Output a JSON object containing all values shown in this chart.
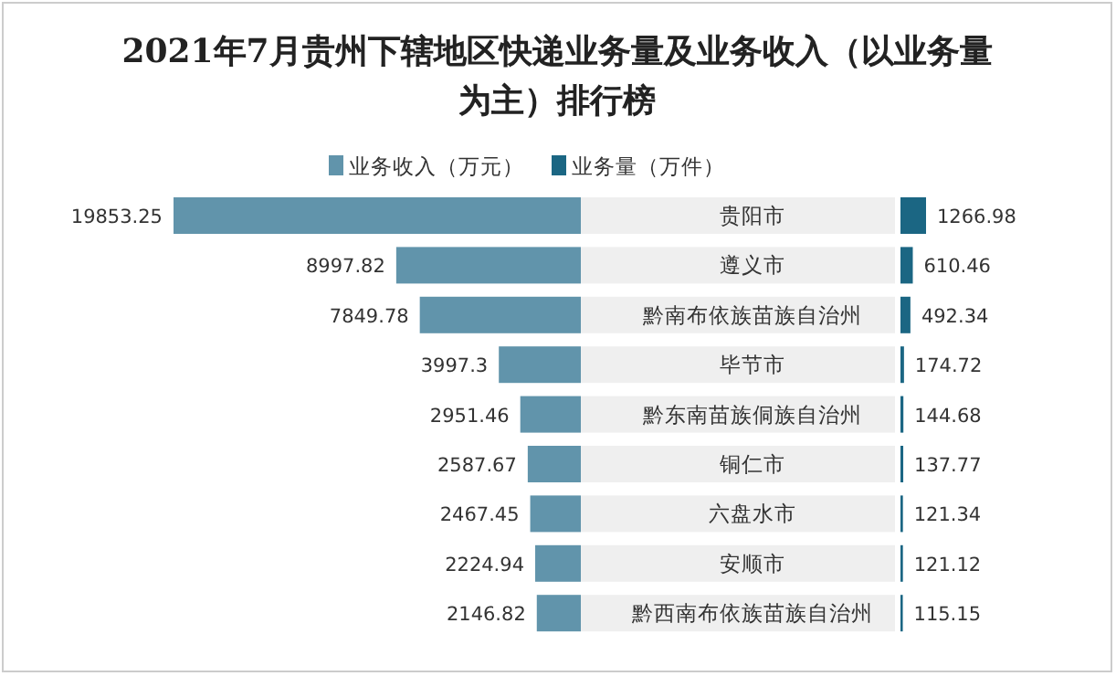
{
  "chart_data": [
    {
      "type": "bar",
      "orientation": "horizontal",
      "title": "2021年7月贵州下辖地区快递业务量及业务收入（以业务量为主）排行榜",
      "categories": [
        "贵阳市",
        "遵义市",
        "黔南布依族苗族自治州",
        "毕节市",
        "黔东南苗族侗族自治州",
        "铜仁市",
        "六盘水市",
        "安顺市",
        "黔西南布依族苗族自治州"
      ],
      "series": [
        {
          "name": "业务收入（万元）",
          "color": "#6194ab",
          "values": [
            19853.25,
            8997.82,
            7849.78,
            3997.3,
            2951.46,
            2587.67,
            2467.45,
            2224.94,
            2146.82
          ]
        }
      ],
      "tick_labels": false,
      "data_labels": true,
      "legend": "top"
    },
    {
      "type": "bar",
      "orientation": "horizontal",
      "categories": [
        null,
        null,
        null,
        null,
        null,
        null,
        null,
        null,
        null
      ],
      "series": [
        {
          "name": "业务量（万件）",
          "color": "#1b6683",
          "values": [
            1266.98,
            610.46,
            492.34,
            174.72,
            144.68,
            137.77,
            121.34,
            121.12,
            115.15
          ]
        }
      ],
      "tick_labels": false,
      "data_labels": true,
      "legend": "top"
    }
  ]
}
